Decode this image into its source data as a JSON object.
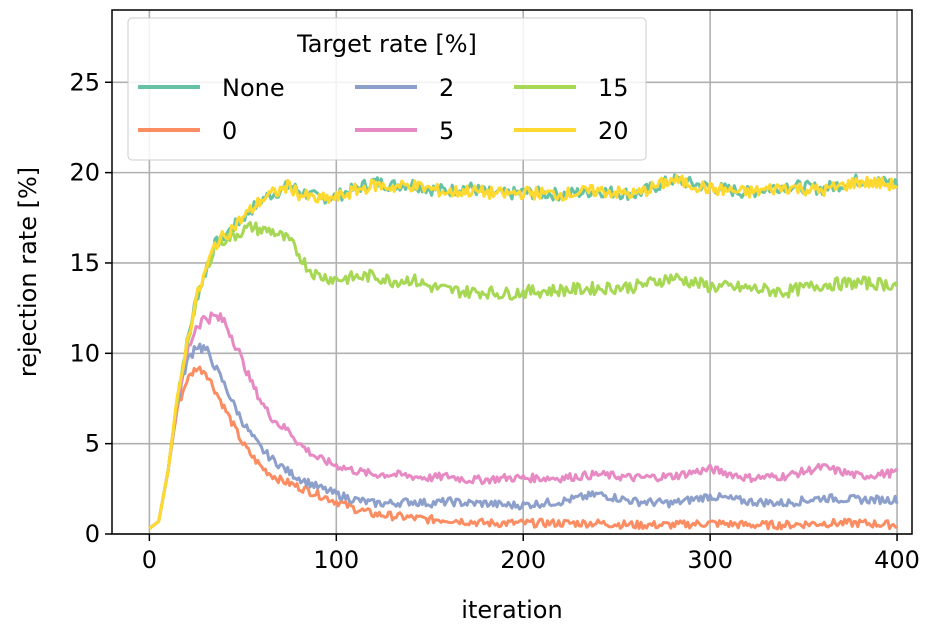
{
  "chart_data": {
    "type": "line",
    "title": "",
    "xlabel": "iteration",
    "ylabel": "rejection rate [%]",
    "xlim": [
      -20,
      408
    ],
    "ylim": [
      0,
      29
    ],
    "xticks": [
      0,
      100,
      200,
      300,
      400
    ],
    "yticks": [
      0,
      5,
      10,
      15,
      20,
      25
    ],
    "grid": true,
    "legend": {
      "title": "Target rate [%]",
      "placement": "top-left",
      "columns": 3
    },
    "series": [
      {
        "name": "None",
        "color": "#66c2a5",
        "x": [
          0,
          5,
          10,
          15,
          20,
          25,
          30,
          35,
          40,
          45,
          50,
          55,
          60,
          65,
          70,
          75,
          80,
          90,
          100,
          110,
          120,
          130,
          140,
          150,
          160,
          170,
          180,
          190,
          200,
          220,
          240,
          260,
          280,
          300,
          320,
          340,
          360,
          380,
          400
        ],
        "y": [
          0.3,
          0.7,
          3.5,
          7.5,
          10.5,
          13.0,
          14.5,
          16.0,
          16.5,
          17.0,
          17.5,
          18.0,
          18.5,
          18.8,
          19.0,
          19.3,
          19.0,
          18.6,
          18.7,
          19.1,
          19.5,
          19.3,
          19.4,
          19.1,
          19.0,
          19.2,
          18.9,
          18.8,
          18.9,
          18.8,
          19.0,
          18.8,
          19.6,
          19.2,
          18.9,
          19.3,
          19.1,
          19.6,
          19.4
        ]
      },
      {
        "name": "0",
        "color": "#fc8d62",
        "x": [
          0,
          5,
          10,
          15,
          20,
          25,
          30,
          35,
          40,
          45,
          50,
          55,
          60,
          65,
          70,
          75,
          80,
          90,
          100,
          110,
          120,
          130,
          140,
          150,
          160,
          170,
          180,
          190,
          200,
          220,
          240,
          260,
          280,
          300,
          320,
          340,
          360,
          380,
          400
        ],
        "y": [
          0.3,
          0.7,
          3.5,
          7.0,
          8.5,
          9.2,
          9.0,
          8.0,
          7.0,
          6.0,
          5.0,
          4.3,
          3.7,
          3.3,
          3.0,
          2.8,
          2.6,
          2.2,
          1.8,
          1.4,
          1.1,
          1.0,
          0.9,
          0.8,
          0.8,
          0.7,
          0.6,
          0.6,
          0.6,
          0.6,
          0.6,
          0.5,
          0.5,
          0.6,
          0.5,
          0.5,
          0.6,
          0.6,
          0.5
        ]
      },
      {
        "name": "2",
        "color": "#8da0cb",
        "x": [
          0,
          5,
          10,
          15,
          20,
          25,
          30,
          35,
          40,
          45,
          50,
          55,
          60,
          65,
          70,
          75,
          80,
          90,
          100,
          110,
          120,
          130,
          140,
          150,
          160,
          170,
          180,
          190,
          200,
          220,
          240,
          260,
          280,
          300,
          320,
          340,
          360,
          380,
          400
        ],
        "y": [
          0.3,
          0.7,
          3.5,
          7.3,
          9.5,
          10.5,
          10.2,
          9.3,
          8.3,
          7.2,
          6.2,
          5.4,
          4.7,
          4.2,
          3.8,
          3.4,
          3.1,
          2.6,
          2.2,
          1.9,
          1.7,
          1.7,
          1.8,
          1.7,
          1.8,
          1.7,
          1.7,
          1.6,
          1.6,
          1.8,
          2.2,
          1.8,
          1.7,
          2.1,
          1.8,
          1.7,
          2.0,
          1.9,
          1.9
        ]
      },
      {
        "name": "5",
        "color": "#e78ac3",
        "x": [
          0,
          5,
          10,
          15,
          20,
          25,
          30,
          35,
          40,
          45,
          50,
          55,
          60,
          65,
          70,
          75,
          80,
          90,
          100,
          110,
          120,
          130,
          140,
          150,
          160,
          170,
          180,
          190,
          200,
          220,
          240,
          260,
          280,
          300,
          320,
          340,
          360,
          380,
          400
        ],
        "y": [
          0.3,
          0.7,
          3.5,
          7.5,
          10.0,
          11.5,
          12.0,
          12.0,
          11.8,
          10.8,
          9.5,
          8.3,
          7.3,
          6.5,
          6.0,
          5.7,
          5.0,
          4.2,
          3.8,
          3.5,
          3.3,
          3.3,
          3.2,
          3.1,
          3.2,
          3.0,
          3.0,
          3.1,
          3.1,
          3.1,
          3.3,
          3.1,
          3.2,
          3.6,
          3.1,
          3.2,
          3.7,
          3.2,
          3.4
        ]
      },
      {
        "name": "15",
        "color": "#a6d854",
        "x": [
          0,
          5,
          10,
          15,
          20,
          25,
          30,
          35,
          40,
          45,
          50,
          55,
          60,
          65,
          70,
          75,
          80,
          85,
          90,
          100,
          110,
          120,
          130,
          140,
          150,
          160,
          170,
          180,
          190,
          200,
          220,
          240,
          260,
          280,
          300,
          320,
          340,
          360,
          380,
          400
        ],
        "y": [
          0.3,
          0.7,
          3.5,
          7.5,
          10.5,
          12.8,
          14.5,
          16.0,
          16.3,
          16.5,
          16.8,
          17.0,
          16.8,
          16.8,
          16.5,
          16.2,
          15.5,
          14.7,
          14.3,
          14.1,
          14.2,
          14.3,
          14.0,
          14.1,
          13.7,
          13.5,
          13.4,
          13.4,
          13.3,
          13.4,
          13.5,
          13.6,
          13.7,
          14.2,
          13.7,
          13.6,
          13.4,
          13.8,
          13.9,
          13.8
        ]
      },
      {
        "name": "20",
        "color": "#ffd92f",
        "x": [
          0,
          5,
          10,
          15,
          20,
          25,
          30,
          35,
          40,
          45,
          50,
          55,
          60,
          65,
          70,
          75,
          80,
          90,
          100,
          110,
          120,
          130,
          140,
          150,
          160,
          170,
          180,
          190,
          200,
          220,
          240,
          260,
          280,
          300,
          320,
          340,
          360,
          380,
          400
        ],
        "y": [
          0.3,
          0.7,
          3.5,
          7.5,
          10.5,
          13.0,
          14.5,
          16.0,
          16.5,
          17.0,
          17.5,
          18.0,
          18.5,
          18.8,
          19.0,
          19.3,
          18.8,
          18.5,
          18.6,
          19.0,
          19.3,
          19.2,
          19.3,
          19.1,
          18.9,
          19.0,
          18.9,
          18.8,
          18.9,
          18.8,
          19.0,
          18.8,
          19.6,
          19.1,
          18.9,
          19.2,
          19.0,
          19.5,
          19.3
        ]
      }
    ]
  }
}
